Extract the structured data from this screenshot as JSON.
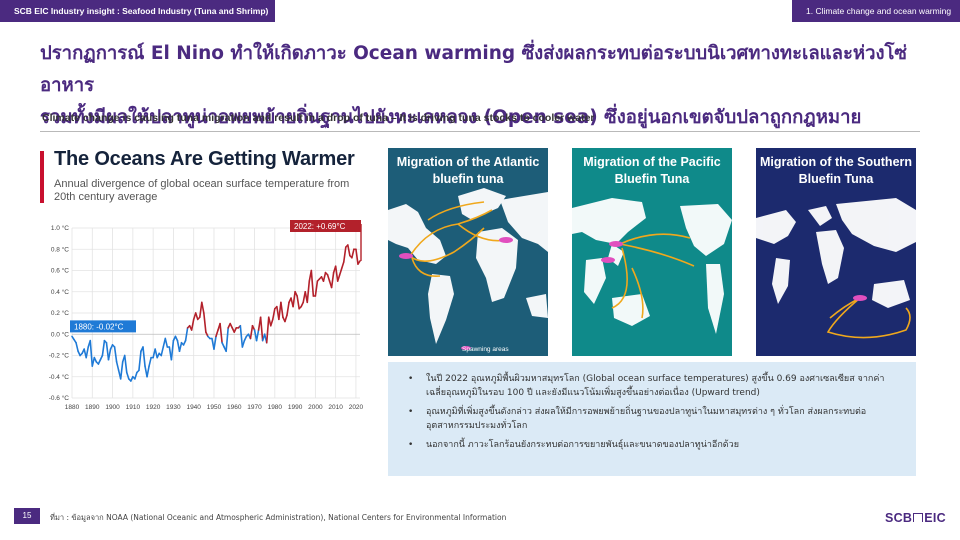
{
  "header": {
    "left": "SCB EIC Industry insight : Seafood Industry (Tuna and Shrimp)",
    "right": "1. Climate change and ocean warming"
  },
  "headline": {
    "line1": "ปรากฏการณ์ El Nino ทำให้เกิดภาวะ Ocean warming ซึ่งส่งผลกระทบต่อระบบนิเวศทางทะเลและห่วงโซ่อาหาร",
    "line2": "รวมทั้งมีผลให้ปลาทูน่าอพยพย้ายถิ่นฐานไปยังทะเลหลวง (Open sea) ซึ่งอยู่นอกเขตจับปลาถูกกฎหมาย"
  },
  "subtitle": "Climate change is causing tuna migration and result in a drop of tuna – It is driving tuna stocks to cooler water",
  "chart": {
    "title": "The Oceans Are Getting Warmer",
    "subtitle": "Annual divergence of global ocean surface temperature from 20th century average",
    "annotation_start": "1880: -0.02°C",
    "annotation_end": "2022: +0.69°C"
  },
  "chart_data": {
    "type": "line",
    "title": "The Oceans Are Getting Warmer",
    "subtitle": "Annual divergence of global ocean surface temperature from 20th century average",
    "xlabel": "",
    "ylabel": "",
    "xlim": [
      1880,
      2022
    ],
    "ylim": [
      -0.6,
      1.0
    ],
    "x_ticks": [
      1880,
      1890,
      1900,
      1910,
      1920,
      1930,
      1940,
      1950,
      1960,
      1970,
      1980,
      1990,
      2000,
      2010,
      2020
    ],
    "y_ticks": [
      "-0.6 °C",
      "-0.4 °C",
      "-0.2 °C",
      "0.0 °C",
      "0.2 °C",
      "0.4 °C",
      "0.6 °C",
      "0.8 °C",
      "1.0 °C"
    ],
    "y_tick_values": [
      -0.6,
      -0.4,
      -0.2,
      0.0,
      0.2,
      0.4,
      0.6,
      0.8,
      1.0
    ],
    "grid": true,
    "colors": {
      "below": "#1f7ad6",
      "above": "#b3212b"
    },
    "series": [
      {
        "x": [
          1880,
          1881,
          1882,
          1883,
          1884,
          1885,
          1886,
          1887,
          1888,
          1889,
          1890,
          1891,
          1892,
          1893,
          1894,
          1895,
          1896,
          1897,
          1898,
          1899,
          1900,
          1901,
          1902,
          1903,
          1904,
          1905,
          1906,
          1907,
          1908,
          1909,
          1910,
          1911,
          1912,
          1913,
          1914,
          1915,
          1916,
          1917,
          1918,
          1919,
          1920,
          1921,
          1922,
          1923,
          1924,
          1925,
          1926,
          1927,
          1928,
          1929,
          1930,
          1931,
          1932,
          1933,
          1934,
          1935,
          1936,
          1937,
          1938,
          1939,
          1940,
          1941,
          1942,
          1943,
          1944,
          1945,
          1946,
          1947,
          1948,
          1949,
          1950,
          1951,
          1952,
          1953,
          1954,
          1955,
          1956,
          1957,
          1958,
          1959,
          1960,
          1961,
          1962,
          1963,
          1964,
          1965,
          1966,
          1967,
          1968,
          1969,
          1970,
          1971,
          1972,
          1973,
          1974,
          1975,
          1976,
          1977,
          1978,
          1979,
          1980,
          1981,
          1982,
          1983,
          1984,
          1985,
          1986,
          1987,
          1988,
          1989,
          1990,
          1991,
          1992,
          1993,
          1994,
          1995,
          1996,
          1997,
          1998,
          1999,
          2000,
          2001,
          2002,
          2003,
          2004,
          2005,
          2006,
          2007,
          2008,
          2009,
          2010,
          2011,
          2012,
          2013,
          2014,
          2015,
          2016,
          2017,
          2018,
          2019,
          2020,
          2021,
          2022
        ],
        "values": [
          -0.02,
          -0.05,
          -0.08,
          -0.16,
          -0.2,
          -0.18,
          -0.14,
          -0.22,
          -0.12,
          -0.06,
          -0.3,
          -0.22,
          -0.26,
          -0.28,
          -0.24,
          -0.2,
          -0.06,
          -0.08,
          -0.24,
          -0.14,
          -0.1,
          -0.12,
          -0.26,
          -0.34,
          -0.42,
          -0.26,
          -0.2,
          -0.36,
          -0.42,
          -0.44,
          -0.4,
          -0.42,
          -0.36,
          -0.34,
          -0.16,
          -0.12,
          -0.3,
          -0.4,
          -0.3,
          -0.22,
          -0.22,
          -0.14,
          -0.22,
          -0.18,
          -0.2,
          -0.12,
          -0.04,
          -0.12,
          -0.12,
          -0.24,
          -0.06,
          -0.02,
          -0.06,
          -0.16,
          -0.08,
          -0.1,
          -0.06,
          0.06,
          0.08,
          0.04,
          0.14,
          0.2,
          0.14,
          0.16,
          0.3,
          0.2,
          0.02,
          -0.02,
          -0.04,
          -0.04,
          -0.14,
          -0.02,
          0.04,
          0.1,
          -0.08,
          -0.12,
          -0.16,
          0.06,
          0.1,
          0.06,
          0.02,
          0.06,
          0.06,
          0.08,
          -0.12,
          -0.06,
          -0.02,
          0.0,
          -0.04,
          0.08,
          0.04,
          -0.06,
          0.04,
          0.16,
          -0.06,
          0.0,
          -0.08,
          0.16,
          0.08,
          0.14,
          0.24,
          0.26,
          0.14,
          0.3,
          0.16,
          0.12,
          0.18,
          0.3,
          0.34,
          0.26,
          0.4,
          0.36,
          0.24,
          0.26,
          0.3,
          0.4,
          0.3,
          0.5,
          0.6,
          0.36,
          0.36,
          0.5,
          0.52,
          0.54,
          0.5,
          0.58,
          0.56,
          0.5,
          0.44,
          0.58,
          0.64,
          0.5,
          0.56,
          0.62,
          0.68,
          0.82,
          0.84,
          0.74,
          0.72,
          0.8,
          0.8,
          0.66,
          0.69
        ]
      }
    ]
  },
  "maps": [
    {
      "title": "Migration of the Atlantic bluefin tuna",
      "legend": "Spawning areas",
      "bg": "#1d5d78",
      "land": "#ffffff"
    },
    {
      "title": "Migration of the Pacific Bluefin Tuna",
      "bg": "#0f8a8a",
      "land": "#ffffff"
    },
    {
      "title": "Migration of the Southern Bluefin Tuna",
      "bg": "#1c2a6e",
      "land": "#ffffff"
    }
  ],
  "bullets": [
    "ในปี 2022 อุณหภูมิพื้นผิวมหาสมุทรโลก (Global ocean surface temperatures) สูงขึ้น 0.69 องศาเซลเซียส จากค่าเฉลี่ยอุณหภูมิในรอบ 100 ปี และยังมีแนวโน้มเพิ่มสูงขึ้นอย่างต่อเนื่อง (Upward trend)",
    "อุณหภูมิที่เพิ่มสูงขึ้นดังกล่าว ส่งผลให้มีการอพยพย้ายถิ่นฐานของปลาทูน่าในมหาสมุทรต่าง ๆ ทั่วโลก ส่งผลกระทบต่ออุตสาหกรรมประมงทั่วโลก",
    "นอกจากนี้ ภาวะโลกร้อนยังกระทบต่อการขยายพันธุ์และขนาดของปลาทูน่าอีกด้วย"
  ],
  "footer": {
    "page": "15",
    "source": "ที่มา : ข้อมูลจาก NOAA (National Oceanic and Atmospheric Administration), National Centers for Environmental Information",
    "logo_left": "SCB",
    "logo_right": "EIC"
  }
}
